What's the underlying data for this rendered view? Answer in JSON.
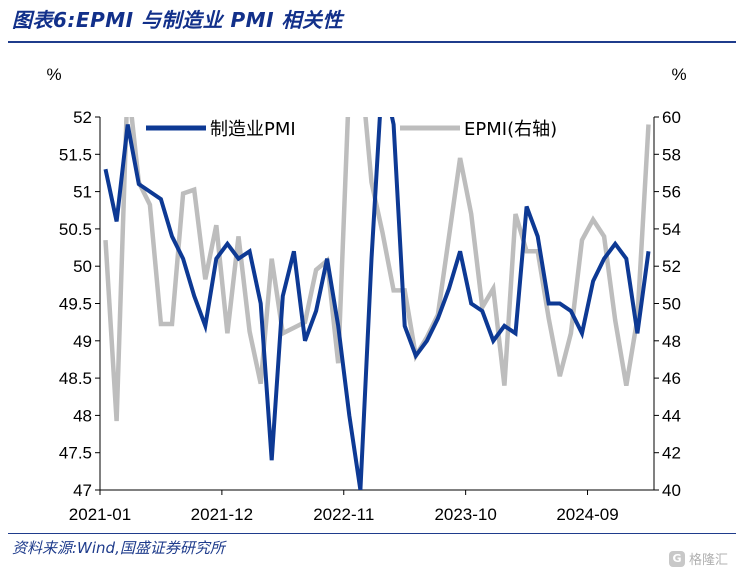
{
  "figure": {
    "title": "图表6:EPMI 与制造业 PMI 相关性",
    "source": "资料来源:Wind,国盛证券研究所",
    "watermark": "格隆汇",
    "watermark_icon": "G"
  },
  "chart_data": {
    "type": "line",
    "left_unit": "%",
    "right_unit": "%",
    "y_left": {
      "lim": [
        47,
        52
      ],
      "ticks": [
        "47",
        "47.5",
        "48",
        "48.5",
        "49",
        "49.5",
        "50",
        "50.5",
        "51",
        "51.5",
        "52"
      ]
    },
    "y_right": {
      "lim": [
        40,
        60
      ],
      "ticks": [
        "40",
        "42",
        "44",
        "46",
        "48",
        "50",
        "52",
        "54",
        "56",
        "58",
        "60"
      ]
    },
    "x_tick_labels": [
      "2021-01",
      "2021-12",
      "2022-11",
      "2023-10",
      "2024-09"
    ],
    "x_tick_index": [
      0,
      11,
      22,
      33,
      44
    ],
    "months": [
      "2021-01",
      "2021-02",
      "2021-03",
      "2021-04",
      "2021-05",
      "2021-06",
      "2021-07",
      "2021-08",
      "2021-09",
      "2021-10",
      "2021-11",
      "2021-12",
      "2022-01",
      "2022-02",
      "2022-03",
      "2022-04",
      "2022-05",
      "2022-06",
      "2022-07",
      "2022-08",
      "2022-09",
      "2022-10",
      "2022-11",
      "2022-12",
      "2023-01",
      "2023-02",
      "2023-03",
      "2023-04",
      "2023-05",
      "2023-06",
      "2023-07",
      "2023-08",
      "2023-09",
      "2023-10",
      "2023-11",
      "2023-12",
      "2024-01",
      "2024-02",
      "2024-03",
      "2024-04",
      "2024-05",
      "2024-06",
      "2024-07",
      "2024-08",
      "2024-09",
      "2024-10",
      "2024-11",
      "2024-12",
      "2025-01",
      "2025-02"
    ],
    "series": [
      {
        "name": "制造业PMI",
        "axis": "left",
        "color": "#0d3994",
        "values": [
          51.3,
          50.6,
          51.9,
          51.1,
          51.0,
          50.9,
          50.4,
          50.1,
          49.6,
          49.2,
          50.1,
          50.3,
          50.1,
          50.2,
          49.5,
          47.4,
          49.6,
          50.2,
          49.0,
          49.4,
          50.1,
          49.2,
          48.0,
          47.0,
          50.1,
          52.6,
          51.9,
          49.2,
          48.8,
          49.0,
          49.3,
          49.7,
          50.2,
          49.5,
          49.4,
          49.0,
          49.2,
          49.1,
          50.8,
          50.4,
          49.5,
          49.5,
          49.4,
          49.1,
          49.8,
          50.1,
          50.3,
          50.1,
          49.1,
          50.2
        ]
      },
      {
        "name": "EPMI(右轴)",
        "axis": "right",
        "color": "#bdbdbd",
        "values": [
          53.4,
          43.7,
          62.0,
          56.5,
          55.3,
          48.9,
          48.9,
          55.9,
          56.1,
          51.3,
          54.2,
          48.4,
          53.6,
          48.5,
          45.7,
          52.4,
          48.4,
          48.7,
          49.0,
          51.8,
          52.3,
          46.8,
          62.0,
          63.0,
          56.5,
          53.8,
          50.7,
          50.7,
          47.2,
          48.2,
          49.4,
          53.6,
          57.8,
          54.8,
          49.8,
          50.8,
          45.6,
          54.8,
          52.8,
          52.8,
          49.2,
          46.1,
          48.4,
          53.4,
          54.5,
          53.6,
          49.1,
          45.6,
          49.2,
          59.6
        ]
      }
    ],
    "legend_position": "top, inside plot",
    "grid": false
  }
}
